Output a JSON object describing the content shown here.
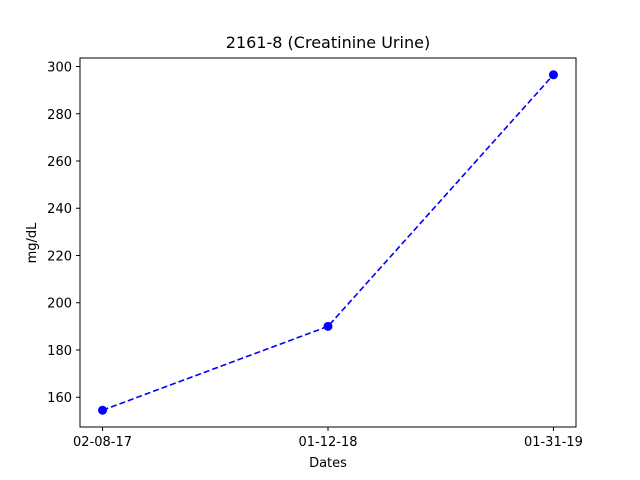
{
  "chart_data": {
    "type": "line",
    "title": "2161-8 (Creatinine Urine)",
    "xlabel": "Dates",
    "ylabel": "mg/dL",
    "categories": [
      "02-08-17",
      "01-12-18",
      "01-31-19"
    ],
    "series": [
      {
        "values": [
          154.5,
          190.0,
          296.5
        ],
        "color": "#0000ff",
        "line_style": "dashed",
        "marker": "circle"
      }
    ],
    "yticks": [
      160,
      180,
      200,
      220,
      240,
      260,
      280,
      300
    ],
    "ylim": [
      147.4,
      303.6
    ],
    "grid": false,
    "legend": "none"
  }
}
